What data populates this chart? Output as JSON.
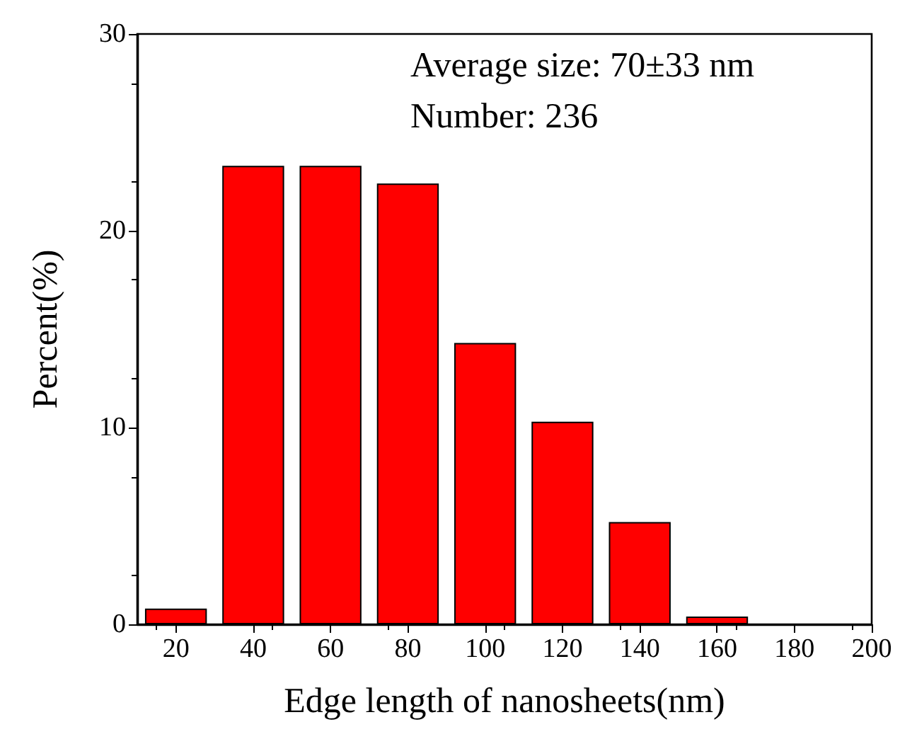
{
  "chart_data": {
    "type": "bar",
    "xlabel": "Edge length of nanosheets(nm)",
    "ylabel": "Percent(%)",
    "annotations": [
      "Average size: 70±33 nm",
      "Number: 236"
    ],
    "x": [
      20,
      40,
      60,
      80,
      100,
      120,
      140,
      160
    ],
    "values": [
      0.8,
      23.3,
      23.3,
      22.4,
      14.3,
      10.3,
      5.2,
      0.4
    ],
    "color": "#ff0000",
    "xlim": [
      10,
      200
    ],
    "xticks": [
      20,
      40,
      60,
      80,
      100,
      120,
      140,
      160,
      180,
      200
    ],
    "ylim": [
      0,
      30
    ],
    "yticks": [
      0,
      10,
      20,
      30
    ]
  }
}
